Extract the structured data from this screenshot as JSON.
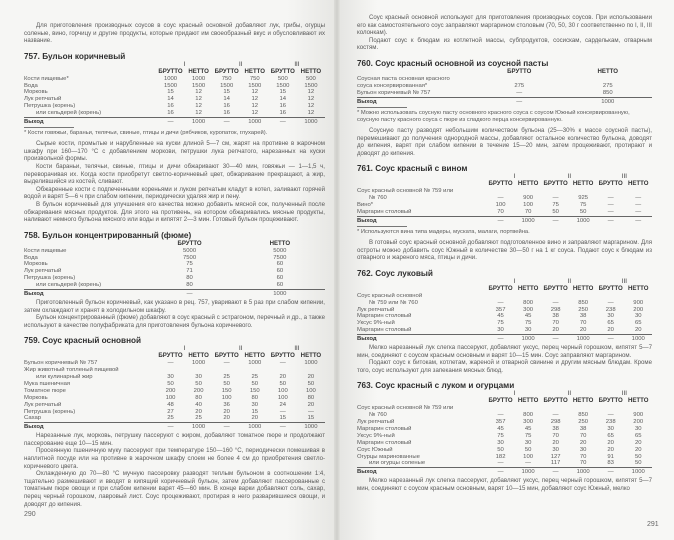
{
  "pages": [
    {
      "number": "290",
      "blocks": [
        {
          "type": "p",
          "text": "Для приготовления производных соусов в соус красный основной добавляют лук, грибы, огурцы соленые, вино, горчицу и другие продукты, которые придают им своеобразный вкус и обусловливают их название."
        },
        {
          "type": "h",
          "text": "757. Бульон коричневый"
        },
        {
          "type": "table",
          "groups": [
            "I",
            "II",
            "III"
          ],
          "cols": [
            "БРУТТО",
            "НЕТТО",
            "БРУТТО",
            "НЕТТО",
            "БРУТТО",
            "НЕТТО"
          ],
          "rows": [
            {
              "label": "Кости пищевые*",
              "values": [
                "1000",
                "1000",
                "750",
                "750",
                "500",
                "500"
              ]
            },
            {
              "label": "Вода",
              "values": [
                "1500",
                "1500",
                "1500",
                "1500",
                "1500",
                "1500"
              ]
            },
            {
              "label": "Морковь",
              "values": [
                "15",
                "12",
                "15",
                "12",
                "15",
                "12"
              ]
            },
            {
              "label": "Лук репчатый",
              "values": [
                "14",
                "12",
                "14",
                "12",
                "14",
                "12"
              ]
            },
            {
              "label": "Петрушка (корень)",
              "values": [
                "16",
                "12",
                "16",
                "12",
                "16",
                "12"
              ]
            },
            {
              "label": "или сельдерей (корень)",
              "values": [
                "16",
                "12",
                "16",
                "12",
                "16",
                "12"
              ]
            }
          ],
          "output": {
            "label": "Выход",
            "values": [
              "—",
              "1000",
              "—",
              "1000",
              "—",
              "1000"
            ]
          }
        },
        {
          "type": "note",
          "text": "* Кости говяжьи, бараньи, телячьи, свиные, птицы и дичи (рябчиков, куропаток, глухарей)."
        },
        {
          "type": "p",
          "text": "Сырые кости, промытые и нарубленные на куски длиной 5—7 см, жарят на противне в жарочном шкафу при 160—170 °С с добавлением моркови, петрушки лука репчатого, нарезанных на куски произвольной формы."
        },
        {
          "type": "p",
          "text": "Кости бараньи, телячьи, свиные, птицы и дичи обжаривают 30—40 мин, говяжьи — 1—1,5 ч, переворачивая их. Когда кости приобретут светло-коричневый цвет, обжаривание прекращают, а жир, выделившийся из костей, сливают."
        },
        {
          "type": "p",
          "text": "Обжаренные кости с подпеченными кореньями и луком репчатым кладут в котел, заливают горячей водой и варят 5—6 ч при слабом кипении, периодически удаляя жир и пену."
        },
        {
          "type": "p",
          "text": "В бульон коричневый для улучшения его качества можно добавить мясной сок, полученный после обжаривания мясных продуктов. Для этого на противень, на котором обжаривались мясные продукты, наливают немного бульона мясного или воды и кипятят 2—3 мин. Готовый бульон процеживают."
        },
        {
          "type": "h",
          "text": "758. Бульон концентрированный (фюме)"
        },
        {
          "type": "table",
          "groups": [],
          "cols": [
            "БРУТТО",
            "НЕТТО"
          ],
          "rows": [
            {
              "label": "Кости пищевые",
              "values": [
                "5000",
                "5000"
              ]
            },
            {
              "label": "Вода",
              "values": [
                "7500",
                "7500"
              ]
            },
            {
              "label": "Морковь",
              "values": [
                "75",
                "60"
              ]
            },
            {
              "label": "Лук репчатый",
              "values": [
                "71",
                "60"
              ]
            },
            {
              "label": "Петрушка (корень)",
              "values": [
                "80",
                "60"
              ]
            },
            {
              "label": "или сельдерей (корень)",
              "values": [
                "80",
                "60"
              ]
            }
          ],
          "output": {
            "label": "Выход",
            "values": [
              "—",
              "1000"
            ]
          }
        },
        {
          "type": "p",
          "text": "Приготовленный бульон коричневый, как указано в рец. 757, уваривают в 5 раз при слабом кипении, затем охлаждают и хранят в холодильном шкафу."
        },
        {
          "type": "p",
          "text": "Бульон концентрированный (фюме) добавляют в соус красный с эстрагоном, перечный и др., а также используют в качестве полуфабриката для приготовления бульона коричневого."
        },
        {
          "type": "h",
          "text": "759. Соус красный основной"
        },
        {
          "type": "table",
          "groups": [
            "I",
            "II",
            "III"
          ],
          "cols": [
            "БРУТТО",
            "НЕТТО",
            "БРУТТО",
            "НЕТТО",
            "БРУТТО",
            "НЕТТО"
          ],
          "rows": [
            {
              "label": "Бульон коричневый № 757",
              "values": [
                "—",
                "1000",
                "—",
                "1000",
                "—",
                "1000"
              ]
            },
            {
              "label": "Жир животный топленый пищевой",
              "values": [
                "",
                "",
                "",
                "",
                "",
                ""
              ]
            },
            {
              "label": "или кулинарный жир",
              "values": [
                "30",
                "30",
                "25",
                "25",
                "20",
                "20"
              ]
            },
            {
              "label": "Мука пшеничная",
              "values": [
                "50",
                "50",
                "50",
                "50",
                "50",
                "50"
              ]
            },
            {
              "label": "Томатное пюре",
              "values": [
                "200",
                "200",
                "150",
                "150",
                "100",
                "100"
              ]
            },
            {
              "label": "Морковь",
              "values": [
                "100",
                "80",
                "100",
                "80",
                "100",
                "80"
              ]
            },
            {
              "label": "Лук репчатый",
              "values": [
                "48",
                "40",
                "36",
                "30",
                "24",
                "20"
              ]
            },
            {
              "label": "Петрушка (корень)",
              "values": [
                "27",
                "20",
                "20",
                "15",
                "—",
                "—"
              ]
            },
            {
              "label": "Сахар",
              "values": [
                "25",
                "25",
                "20",
                "20",
                "15",
                "15"
              ]
            }
          ],
          "output": {
            "label": "Выход",
            "values": [
              "—",
              "1000",
              "—",
              "1000",
              "—",
              "1000"
            ]
          }
        },
        {
          "type": "p",
          "text": "Нарезанные лук, морковь, петрушку пассеруют с жиром, добавляют томатное пюре и продолжают пассерование еще 10—15 мин."
        },
        {
          "type": "p",
          "text": "Просеянную пшеничную муку пассеруют при температуре 150—160 °С, периодически помешивая в наплитной посуде или на противне в жарочном шкафу слоем не более 4 см до приобретения светло-коричневого цвета."
        },
        {
          "type": "p",
          "text": "Охлажденную до 70—80 °С мучную пассеровку разводят теплым бульоном в соотношении 1:4, тщательно размешивают и вводят в кипящий коричневый бульон, затем добавляют пассерованные с томатным пюре овощи и при слабом кипении варят 45—60 мин. В конце варки добавляют соль, сахар, перец черный горошком, лавровый лист. Соус процеживают, протирая в него разварившиеся овощи, и доводят до кипения."
        }
      ]
    },
    {
      "number": "291",
      "blocks": [
        {
          "type": "p",
          "text": "Соус красный основной используют для приготовления производных соусов. При использовании его как самостоятельного соус заправляют маргарином столовым (70, 50, 30 г соответственно по I, II, III колонкам)."
        },
        {
          "type": "p",
          "text": "Подают соус к блюдам из котлетной массы, субпродуктов, сосискам, сарделькам, отварным костям."
        },
        {
          "type": "h",
          "text": "760. Соус красный основной из соусной пасты"
        },
        {
          "type": "table",
          "groups": [],
          "cols": [
            "БРУТТО",
            "НЕТТО"
          ],
          "rows": [
            {
              "label": "Соусная паста основная красного",
              "values": [
                "",
                ""
              ]
            },
            {
              "label": "соуса консервированная*",
              "values": [
                "275",
                "275"
              ]
            },
            {
              "label": "Бульон коричневый № 757",
              "values": [
                "—",
                "850"
              ]
            }
          ],
          "output": {
            "label": "Выход",
            "values": [
              "—",
              "1000"
            ]
          }
        },
        {
          "type": "note",
          "text": "* Можно использовать соусную пасту основного красного соуса с соусом Южный консервированную, соусную пасту красного соуса с пюре из сладкого перца консервированную."
        },
        {
          "type": "p",
          "text": "Соусную пасту разводят небольшим количеством бульона (25—30% к массе соусной пасты), перемешивают до получения однородной массы, добавляют остальное количество бульона, доводят до кипения, варят при слабом кипении в течение 15—20 мин, затем процеживают, протирают и доводят до кипения."
        },
        {
          "type": "h",
          "text": "761. Соус красный с вином"
        },
        {
          "type": "table",
          "groups": [
            "I",
            "II",
            "III"
          ],
          "cols": [
            "БРУТТО",
            "НЕТТО",
            "БРУТТО",
            "НЕТТО",
            "БРУТТО",
            "НЕТТО"
          ],
          "rows": [
            {
              "label": "Соус красный основной № 759 или",
              "values": [
                "",
                "",
                "",
                "",
                "",
                ""
              ]
            },
            {
              "label": "№ 760",
              "values": [
                "—",
                "900",
                "—",
                "925",
                "—",
                "—"
              ]
            },
            {
              "label": "Вино*",
              "values": [
                "100",
                "100",
                "75",
                "75",
                "—",
                "—"
              ]
            },
            {
              "label": "Маргарин столовый",
              "values": [
                "70",
                "70",
                "50",
                "50",
                "—",
                "—"
              ]
            }
          ],
          "output": {
            "label": "Выход",
            "values": [
              "—",
              "1000",
              "—",
              "1000",
              "—",
              "—"
            ]
          }
        },
        {
          "type": "note",
          "text": "* Используются вина типа мадеры, муската, малаги, портвейна."
        },
        {
          "type": "p",
          "text": "В готовый соус красный основной добавляют подготовленное вино и заправляют маргарином. Для остроты можно добавить соус Южный в количестве 30—50 г на 1 кг соуса. Подают соус к блюдам из отварного и жареного мяса, птицы и дичи."
        },
        {
          "type": "h",
          "text": "762. Соус луковый"
        },
        {
          "type": "table",
          "groups": [
            "I",
            "II",
            "III"
          ],
          "cols": [
            "БРУТТО",
            "НЕТТО",
            "БРУТТО",
            "НЕТТО",
            "БРУТТО",
            "НЕТТО"
          ],
          "rows": [
            {
              "label": "Соус красный основной",
              "values": [
                "",
                "",
                "",
                "",
                "",
                ""
              ]
            },
            {
              "label": "№ 759 или № 760",
              "values": [
                "—",
                "800",
                "—",
                "850",
                "—",
                "900"
              ]
            },
            {
              "label": "Лук репчатый",
              "values": [
                "357",
                "300",
                "298",
                "250",
                "238",
                "200"
              ]
            },
            {
              "label": "Маргарин столовый",
              "values": [
                "45",
                "45",
                "38",
                "38",
                "30",
                "30"
              ]
            },
            {
              "label": "Уксус 9%-ный",
              "values": [
                "75",
                "75",
                "70",
                "70",
                "65",
                "65"
              ]
            },
            {
              "label": "Маргарин столовый",
              "values": [
                "30",
                "30",
                "20",
                "20",
                "20",
                "20"
              ]
            }
          ],
          "output": {
            "label": "Выход",
            "values": [
              "—",
              "1000",
              "—",
              "1000",
              "—",
              "1000"
            ]
          }
        },
        {
          "type": "p",
          "text": "Мелко нарезанный лук слегка пассеруют, добавляют уксус, перец черный горошком, кипятят 5—7 мин, соединяют с соусом красным основным и варят 10—15 мин. Соус заправляют маргарином."
        },
        {
          "type": "p",
          "text": "Подают соус к битокам, котлетам, жареной и отварной свинине и другим мясным блюдам. Кроме того, соус используют для запекания мясных блюд."
        },
        {
          "type": "h",
          "text": "763. Соус красный с луком и огурцами"
        },
        {
          "type": "table",
          "groups": [
            "I",
            "II",
            "III"
          ],
          "cols": [
            "БРУТТО",
            "НЕТТО",
            "БРУТТО",
            "НЕТТО",
            "БРУТТО",
            "НЕТТО"
          ],
          "rows": [
            {
              "label": "Соус красный основной № 759 или",
              "values": [
                "",
                "",
                "",
                "",
                "",
                ""
              ]
            },
            {
              "label": "№ 760",
              "values": [
                "—",
                "800",
                "—",
                "850",
                "—",
                "900"
              ]
            },
            {
              "label": "Лук репчатый",
              "values": [
                "357",
                "300",
                "298",
                "250",
                "238",
                "200"
              ]
            },
            {
              "label": "Маргарин столовый",
              "values": [
                "45",
                "45",
                "38",
                "38",
                "30",
                "30"
              ]
            },
            {
              "label": "Уксус 9%-ный",
              "values": [
                "75",
                "75",
                "70",
                "70",
                "65",
                "65"
              ]
            },
            {
              "label": "Маргарин столовый",
              "values": [
                "30",
                "30",
                "20",
                "20",
                "20",
                "20"
              ]
            },
            {
              "label": "Соус Южный",
              "values": [
                "50",
                "50",
                "30",
                "30",
                "20",
                "20"
              ]
            },
            {
              "label": "Огурцы маринованные",
              "values": [
                "182",
                "100",
                "127",
                "70",
                "91",
                "50"
              ]
            },
            {
              "label": "или огурцы соленые",
              "values": [
                "—",
                "—",
                "117",
                "70",
                "83",
                "50"
              ]
            }
          ],
          "output": {
            "label": "Выход",
            "values": [
              "—",
              "1000",
              "—",
              "1000",
              "—",
              "1000"
            ]
          }
        },
        {
          "type": "p",
          "text": "Мелко нарезанный лук слегка пассеруют, добавляют уксус, перец черный горошком, кипятят 5—7 мин, соединяют с соусом красным основным, варят 10—15 мин, добавляют соус Южный, мелко"
        }
      ]
    }
  ]
}
